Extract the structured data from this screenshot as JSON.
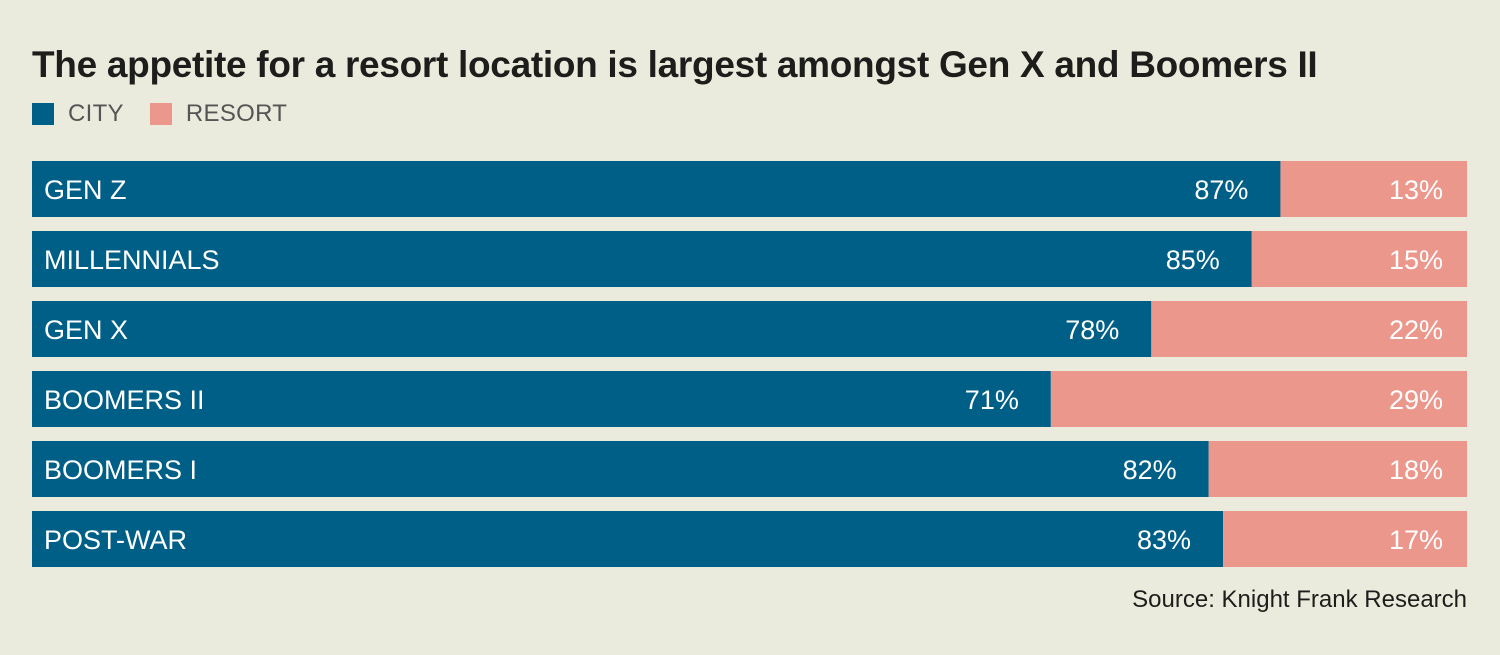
{
  "title": "The appetite for a resort location is largest amongst Gen X and Boomers II",
  "source": "Source: Knight Frank Research",
  "colors": {
    "city": "#005f87",
    "resort": "#ec978c",
    "background": "#ebebdd"
  },
  "chart_data": {
    "type": "bar",
    "orientation": "horizontal",
    "stacked": true,
    "categories": [
      "GEN Z",
      "MILLENNIALS",
      "GEN X",
      "BOOMERS II",
      "BOOMERS I",
      "POST-WAR"
    ],
    "series": [
      {
        "name": "CITY",
        "values": [
          87,
          85,
          78,
          71,
          82,
          83
        ],
        "color": "#005f87"
      },
      {
        "name": "RESORT",
        "values": [
          13,
          15,
          22,
          29,
          18,
          17
        ],
        "color": "#ec978c"
      }
    ],
    "value_suffix": "%",
    "xlim": [
      0,
      100
    ],
    "legend": "top-left",
    "grid": false
  }
}
